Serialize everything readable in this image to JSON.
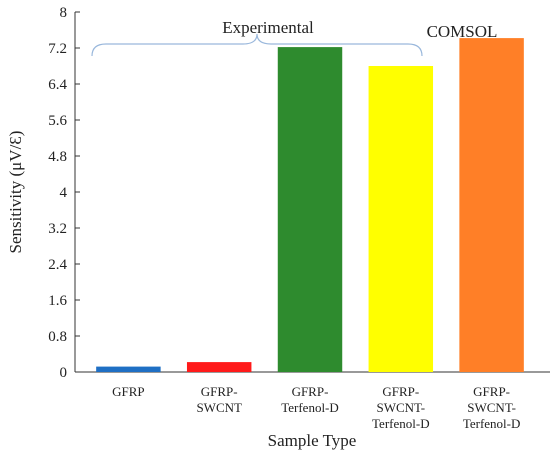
{
  "chart_data": {
    "type": "bar",
    "categories": [
      [
        "GFRP"
      ],
      [
        "GFRP-",
        "SWCNT"
      ],
      [
        "GFRP-",
        "Terfenol-D"
      ],
      [
        "GFRP-",
        "SWCNT-",
        "Terfenol-D"
      ],
      [
        "GFRP-",
        "SWCNT-",
        "Terfenol-D"
      ]
    ],
    "values": [
      0.12,
      0.22,
      7.22,
      6.8,
      7.42
    ],
    "colors": [
      "#1f6fc4",
      "#ff1a1a",
      "#2e8b2e",
      "#ffff00",
      "#ff7f27"
    ],
    "xlabel": "Sample Type",
    "ylabel": "Sensitivity (μV/Ɛ)",
    "ylim": [
      0,
      8
    ],
    "yticks": [
      "0",
      "0.8",
      "1.6",
      "2.4",
      "3.2",
      "4",
      "4.8",
      "5.6",
      "6.4",
      "7.2",
      "8"
    ],
    "annotations": {
      "experimental": "Experimental",
      "comsol": "COMSOL"
    },
    "brace_color": "#9ab8dc",
    "grid": false
  }
}
